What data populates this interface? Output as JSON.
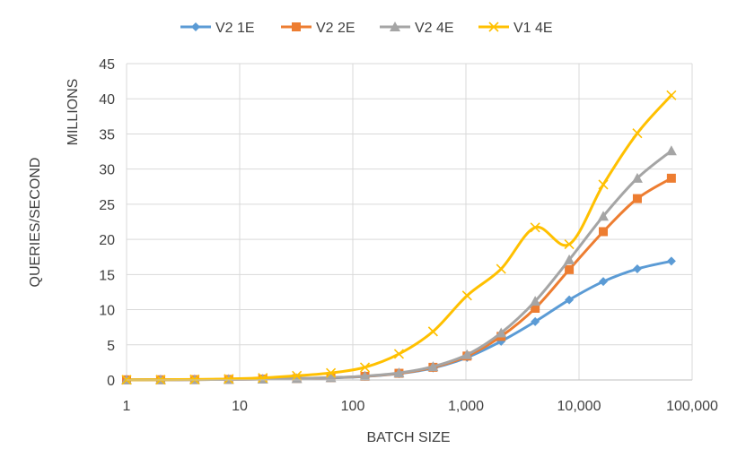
{
  "chart_data": {
    "type": "line",
    "title": "",
    "xlabel": "BATCH SIZE",
    "ylabel": "QUERIES/SECOND",
    "y_units_label": "MILLIONS",
    "x_scale": "log",
    "xlim": [
      1,
      100000
    ],
    "ylim": [
      0,
      45
    ],
    "x_ticks": [
      1,
      10,
      100,
      1000,
      10000,
      100000
    ],
    "x_tick_labels": [
      "1",
      "10",
      "100",
      "1,000",
      "10,000",
      "100,000"
    ],
    "y_ticks": [
      0,
      5,
      10,
      15,
      20,
      25,
      30,
      35,
      40,
      45
    ],
    "y_tick_labels": [
      "0",
      "5",
      "10",
      "15",
      "20",
      "25",
      "30",
      "35",
      "40",
      "45"
    ],
    "grid": "vertical and horizontal",
    "legend_position": "top",
    "x": [
      1,
      2,
      4,
      8,
      16,
      32,
      64,
      128,
      256,
      512,
      1024,
      2048,
      4096,
      8192,
      16384,
      32768,
      65536
    ],
    "series": [
      {
        "name": "V2 1E",
        "color": "#5B9BD5",
        "marker": "diamond",
        "values": [
          0.02,
          0.03,
          0.05,
          0.08,
          0.12,
          0.2,
          0.3,
          0.5,
          0.9,
          1.7,
          3.2,
          5.5,
          8.3,
          11.4,
          14.0,
          15.8,
          16.9
        ]
      },
      {
        "name": "V2 2E",
        "color": "#ED7D31",
        "marker": "square",
        "values": [
          0.02,
          0.03,
          0.05,
          0.08,
          0.13,
          0.2,
          0.32,
          0.52,
          0.95,
          1.8,
          3.4,
          6.2,
          10.2,
          15.7,
          21.1,
          25.8,
          28.7
        ]
      },
      {
        "name": "V2 4E",
        "color": "#A5A5A5",
        "marker": "triangle",
        "values": [
          0.02,
          0.03,
          0.05,
          0.08,
          0.13,
          0.2,
          0.33,
          0.55,
          1.0,
          1.9,
          3.6,
          6.7,
          11.2,
          17.1,
          23.3,
          28.7,
          32.6
        ]
      },
      {
        "name": "V1 4E",
        "color": "#FFC000",
        "marker": "x",
        "values": [
          0.02,
          0.04,
          0.08,
          0.15,
          0.3,
          0.6,
          1.0,
          1.8,
          3.7,
          6.9,
          12.0,
          15.8,
          21.7,
          19.3,
          27.8,
          35.1,
          40.5
        ]
      }
    ]
  }
}
